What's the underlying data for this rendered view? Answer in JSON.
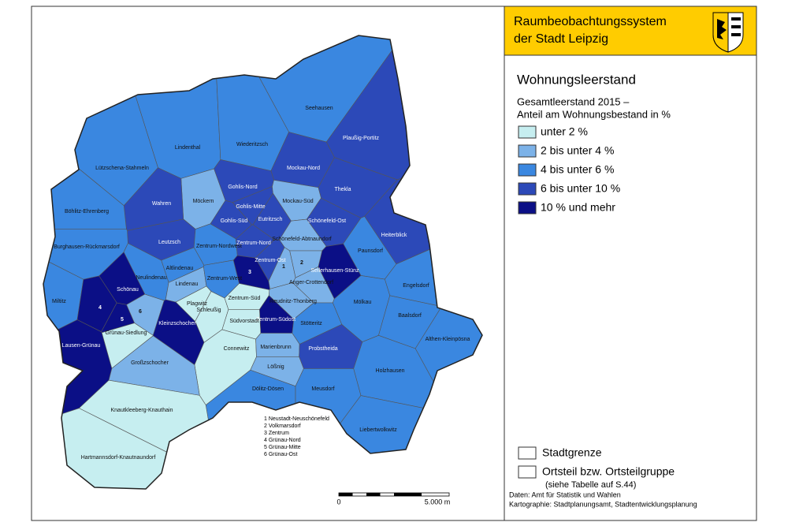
{
  "header": {
    "title_lines": [
      "Raumbeobachtungssystem",
      "der Stadt Leipzig"
    ]
  },
  "legend": {
    "title": "Wohnungsleerstand",
    "subtitle_lines": [
      "Gesamtleerstand 2015 –",
      "Anteil am Wohnungsbestand in %"
    ],
    "classes": [
      {
        "label": "unter 2 %",
        "color": "#c6eef0"
      },
      {
        "label": "2 bis unter 4 %",
        "color": "#7cb2e8"
      },
      {
        "label": "4 bis unter 6 %",
        "color": "#3a87e0"
      },
      {
        "label": "6 bis unter 10 %",
        "color": "#2c49b8"
      },
      {
        "label": "10 % und mehr",
        "color": "#0b0f86"
      }
    ],
    "boundaries": [
      "Stadtgrenze",
      "Ortsteil bzw. Ortsteilgruppe"
    ],
    "boundary_note": "(siehe Tabelle auf S.44)",
    "credits": [
      "Daten: Amt für Statistik und Wahlen",
      "Kartographie: Stadtplanungsamt, Stadtentwicklungsplanung"
    ]
  },
  "scale": {
    "start": "0",
    "end": "5.000 m"
  },
  "footnotes": [
    "1  Neustadt-Neuschönefeld",
    "2  Volkmarsdorf",
    "3  Zentrum",
    "4  Grünau-Nord",
    "5  Grünau-Mitte",
    "6  Grünau-Ost"
  ],
  "districts": [
    {
      "label": "Seehausen",
      "color": "#3a87e0"
    },
    {
      "label": "Plaußig-Portitz",
      "color": "#2c49b8"
    },
    {
      "label": "Lindenthal",
      "color": "#3a87e0"
    },
    {
      "label": "Wiederitzsch",
      "color": "#3a87e0"
    },
    {
      "label": "Lützschena-Stahmeln",
      "color": "#3a87e0"
    },
    {
      "label": "Mockau-Nord",
      "color": "#2c49b8"
    },
    {
      "label": "Thekla",
      "color": "#2c49b8"
    },
    {
      "label": "Gohlis-Nord",
      "color": "#2c49b8"
    },
    {
      "label": "Möckern",
      "color": "#7cb2e8"
    },
    {
      "label": "Wahren",
      "color": "#2c49b8"
    },
    {
      "label": "Böhlitz-Ehrenberg",
      "color": "#3a87e0"
    },
    {
      "label": "Gohlis-Mitte",
      "color": "#2c49b8"
    },
    {
      "label": "Eutritzsch",
      "color": "#2c49b8"
    },
    {
      "label": "Mockau-Süd",
      "color": "#7cb2e8"
    },
    {
      "label": "Gohlis-Süd",
      "color": "#2c49b8"
    },
    {
      "label": "Schönefeld-Ost",
      "color": "#2c49b8"
    },
    {
      "label": "Heiterblick",
      "color": "#2c49b8"
    },
    {
      "label": "Leutzsch",
      "color": "#2c49b8"
    },
    {
      "label": "Zentrum-Nordwest",
      "color": "#3a87e0"
    },
    {
      "label": "Zentrum-Nord",
      "color": "#2c49b8"
    },
    {
      "label": "Schönefeld-Abtnaundorf",
      "color": "#7cb2e8"
    },
    {
      "label": "Paunsdorf",
      "color": "#3a87e0"
    },
    {
      "label": "Burghausen-Rückmarsdorf",
      "color": "#3a87e0"
    },
    {
      "label": "Zentrum-Ost",
      "color": "#2c49b8"
    },
    {
      "label": "Altlindenau",
      "color": "#3a87e0"
    },
    {
      "label": "Sellerhausen-Stünz",
      "color": "#0b0f86"
    },
    {
      "label": "Neulindenau",
      "color": "#3a87e0"
    },
    {
      "label": "Lindenau",
      "color": "#7cb2e8"
    },
    {
      "label": "Zentrum-West",
      "color": "#3a87e0"
    },
    {
      "label": "3",
      "color": "#0b0f86"
    },
    {
      "label": "1",
      "color": "#7cb2e8"
    },
    {
      "label": "2",
      "color": "#7cb2e8"
    },
    {
      "label": "Anger-Crottendorf",
      "color": "#7cb2e8"
    },
    {
      "label": "Engelsdorf",
      "color": "#3a87e0"
    },
    {
      "label": "Schönau",
      "color": "#0b0f86"
    },
    {
      "label": "Mölkau",
      "color": "#3a87e0"
    },
    {
      "label": "Reudnitz-Thonberg",
      "color": "#7cb2e8"
    },
    {
      "label": "Zentrum-Süd",
      "color": "#c6eef0"
    },
    {
      "label": "Plagwitz",
      "color": "#c6eef0"
    },
    {
      "label": "Miltitz",
      "color": "#3a87e0"
    },
    {
      "label": "4",
      "color": "#0b0f86"
    },
    {
      "label": "Schleußig",
      "color": "#c6eef0"
    },
    {
      "label": "Zentrum-Südost",
      "color": "#0b0f86"
    },
    {
      "label": "Baalsdorf",
      "color": "#3a87e0"
    },
    {
      "label": "5",
      "color": "#0b0f86"
    },
    {
      "label": "6",
      "color": "#7cb2e8"
    },
    {
      "label": "Südvorstadt",
      "color": "#c6eef0"
    },
    {
      "label": "Kleinzschocher",
      "color": "#0b0f86"
    },
    {
      "label": "Stötteritz",
      "color": "#3a87e0"
    },
    {
      "label": "Althen-Kleinpösna",
      "color": "#3a87e0"
    },
    {
      "label": "Lausen-Grünau",
      "color": "#0b0f86"
    },
    {
      "label": "Grünau-Siedlung",
      "color": "#c6eef0"
    },
    {
      "label": "Connewitz",
      "color": "#c6eef0"
    },
    {
      "label": "Marienbrunn",
      "color": "#7cb2e8"
    },
    {
      "label": "Probstheida",
      "color": "#2c49b8"
    },
    {
      "label": "Lößnig",
      "color": "#7cb2e8"
    },
    {
      "label": "Großzschocher",
      "color": "#7cb2e8"
    },
    {
      "label": "Holzhausen",
      "color": "#3a87e0"
    },
    {
      "label": "Dölitz-Dösen",
      "color": "#3a87e0"
    },
    {
      "label": "Meusdorf",
      "color": "#3a87e0"
    },
    {
      "label": "Knautkleeberg-Knauthain",
      "color": "#c6eef0"
    },
    {
      "label": "Liebertwolkwitz",
      "color": "#3a87e0"
    },
    {
      "label": "Hartmannsdorf-Knautnaundorf",
      "color": "#c6eef0"
    }
  ]
}
